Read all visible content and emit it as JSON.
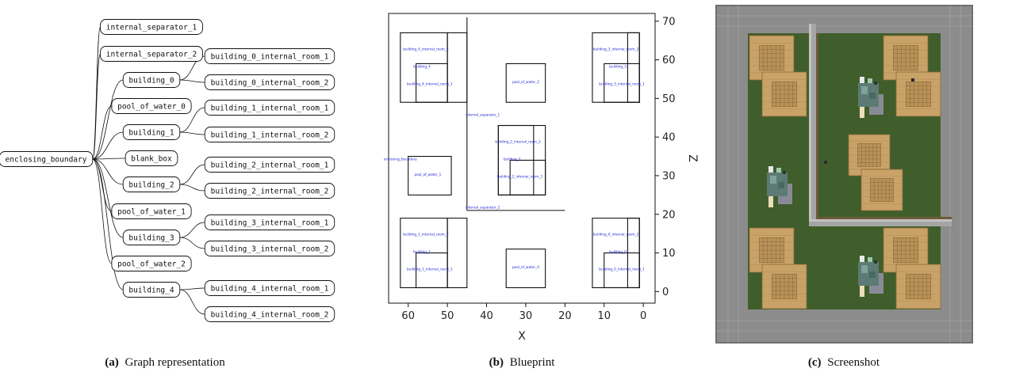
{
  "graph": {
    "root": "enclosing_boundary",
    "level1": [
      "internal_separator_1",
      "internal_separator_2",
      "building_0",
      "pool_of_water_0",
      "building_1",
      "blank_box",
      "building_2",
      "pool_of_water_1",
      "building_3",
      "pool_of_water_2",
      "building_4"
    ],
    "rooms": {
      "building_0": [
        "building_0_internal_room_1",
        "building_0_internal_room_2"
      ],
      "building_1": [
        "building_1_internal_room_1",
        "building_1_internal_room_2"
      ],
      "building_2": [
        "building_2_internal_room_1",
        "building_2_internal_room_2"
      ],
      "building_3": [
        "building_3_internal_room_1",
        "building_3_internal_room_2"
      ],
      "building_4": [
        "building_4_internal_room_1",
        "building_4_internal_room_2"
      ]
    }
  },
  "blueprint": {
    "x_axis": {
      "label": "X",
      "range": [
        65,
        -3
      ],
      "ticks": [
        60,
        50,
        40,
        30,
        20,
        10,
        0
      ]
    },
    "z_axis": {
      "label": "Z",
      "range": [
        -3,
        72
      ],
      "ticks": [
        0,
        10,
        20,
        30,
        40,
        50,
        60,
        70
      ]
    },
    "rects": [
      {
        "x": [
          50,
          62
        ],
        "z": [
          49,
          67
        ]
      },
      {
        "x": [
          45,
          50
        ],
        "z": [
          49,
          67
        ]
      },
      {
        "x": [
          50,
          58
        ],
        "z": [
          49,
          59
        ]
      },
      {
        "x": [
          25,
          35
        ],
        "z": [
          49,
          59
        ]
      },
      {
        "x": [
          1,
          13
        ],
        "z": [
          49,
          67
        ]
      },
      {
        "x": [
          1,
          4
        ],
        "z": [
          49,
          67
        ]
      },
      {
        "x": [
          1,
          10
        ],
        "z": [
          49,
          59
        ]
      },
      {
        "x": [
          25,
          37
        ],
        "z": [
          25,
          43
        ]
      },
      {
        "x": [
          28,
          37
        ],
        "z": [
          25,
          43
        ]
      },
      {
        "x": [
          25,
          34
        ],
        "z": [
          25,
          34
        ]
      },
      {
        "x": [
          49,
          60
        ],
        "z": [
          25,
          35
        ]
      },
      {
        "x": [
          50,
          62
        ],
        "z": [
          1,
          19
        ]
      },
      {
        "x": [
          45,
          50
        ],
        "z": [
          1,
          19
        ]
      },
      {
        "x": [
          50,
          58
        ],
        "z": [
          1,
          10
        ]
      },
      {
        "x": [
          25,
          35
        ],
        "z": [
          1,
          11
        ]
      },
      {
        "x": [
          1,
          13
        ],
        "z": [
          1,
          19
        ]
      },
      {
        "x": [
          1,
          4
        ],
        "z": [
          1,
          19
        ]
      },
      {
        "x": [
          1,
          10
        ],
        "z": [
          1,
          10
        ]
      }
    ],
    "lines": [
      {
        "x": [
          45,
          45
        ],
        "z": [
          21,
          71
        ]
      },
      {
        "x": [
          45,
          20
        ],
        "z": [
          21,
          21
        ]
      }
    ],
    "labels": [
      {
        "text": "building_4_internal_room_2",
        "x": 55.5,
        "z": 62.5
      },
      {
        "text": "building_4",
        "x": 56.5,
        "z": 58
      },
      {
        "text": "building_4_internal_room_1",
        "x": 54.5,
        "z": 53.5
      },
      {
        "text": "pool_of_water_2",
        "x": 30,
        "z": 54
      },
      {
        "text": "building_3_internal_room_2",
        "x": 7,
        "z": 62.5
      },
      {
        "text": "building_3",
        "x": 6.5,
        "z": 58
      },
      {
        "text": "building_3_internal_room_1",
        "x": 5.5,
        "z": 53.5
      },
      {
        "text": "internal_separator_1",
        "x": 41,
        "z": 45.5
      },
      {
        "text": "building_2_internal_room_2",
        "x": 32,
        "z": 38.5
      },
      {
        "text": "building_2",
        "x": 33.5,
        "z": 34
      },
      {
        "text": "building_2_internal_room_1",
        "x": 31.5,
        "z": 29.5
      },
      {
        "text": "enclosing_boundary",
        "x": 62,
        "z": 34
      },
      {
        "text": "pool_of_water_1",
        "x": 55,
        "z": 30
      },
      {
        "text": "internal_separator_2",
        "x": 41,
        "z": 21.5
      },
      {
        "text": "building_1_internal_room_2",
        "x": 55.5,
        "z": 14.5
      },
      {
        "text": "building_1",
        "x": 56.5,
        "z": 10
      },
      {
        "text": "building_1_internal_room_1",
        "x": 54.5,
        "z": 5.5
      },
      {
        "text": "pool_of_water_0",
        "x": 30,
        "z": 6
      },
      {
        "text": "building_0_internal_room_2",
        "x": 7,
        "z": 14.5
      },
      {
        "text": "building_0",
        "x": 6.5,
        "z": 10
      },
      {
        "text": "building_0_internal_room_1",
        "x": 5.5,
        "z": 5.5
      }
    ]
  },
  "captions": {
    "a": {
      "tag": "(a)",
      "text": "Graph representation"
    },
    "b": {
      "tag": "(b)",
      "text": "Blueprint"
    },
    "c": {
      "tag": "(c)",
      "text": "Screenshot"
    }
  },
  "colors": {
    "grass": "#3f5e2b",
    "wall": "#9a9a9a",
    "wall_dark": "#7a7a7a",
    "plank": "#c8a267",
    "plank_dark": "#8a6a3a",
    "label_blue": "#1b1bd6",
    "water": "#5d7b74"
  }
}
